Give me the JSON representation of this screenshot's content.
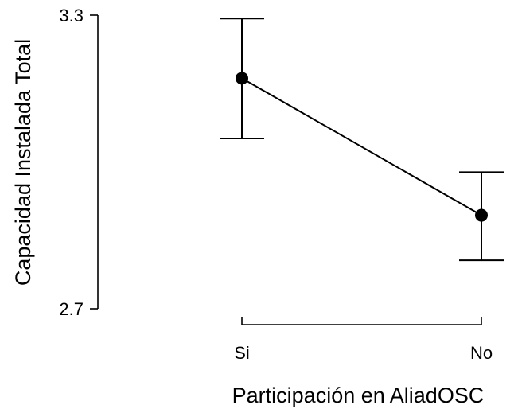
{
  "chart_data": {
    "type": "line",
    "title": "",
    "xlabel": "Participación en AliadOSC",
    "ylabel": "Capacidad Instalada Total",
    "categories": [
      "Si",
      "No"
    ],
    "series": [
      {
        "values": [
          3.171,
          2.891
        ],
        "lower": [
          3.048,
          2.799
        ],
        "upper": [
          3.293,
          2.979
        ]
      }
    ],
    "yticks": [
      3.3,
      2.7
    ],
    "ytick_labels": [
      "3.3",
      "2.7"
    ],
    "ylim": [
      2.7,
      3.3
    ],
    "grid": false,
    "legend": "none",
    "colors": {
      "line": "#000000",
      "point": "#000000",
      "axis": "#000000",
      "background": "#ffffff"
    }
  }
}
